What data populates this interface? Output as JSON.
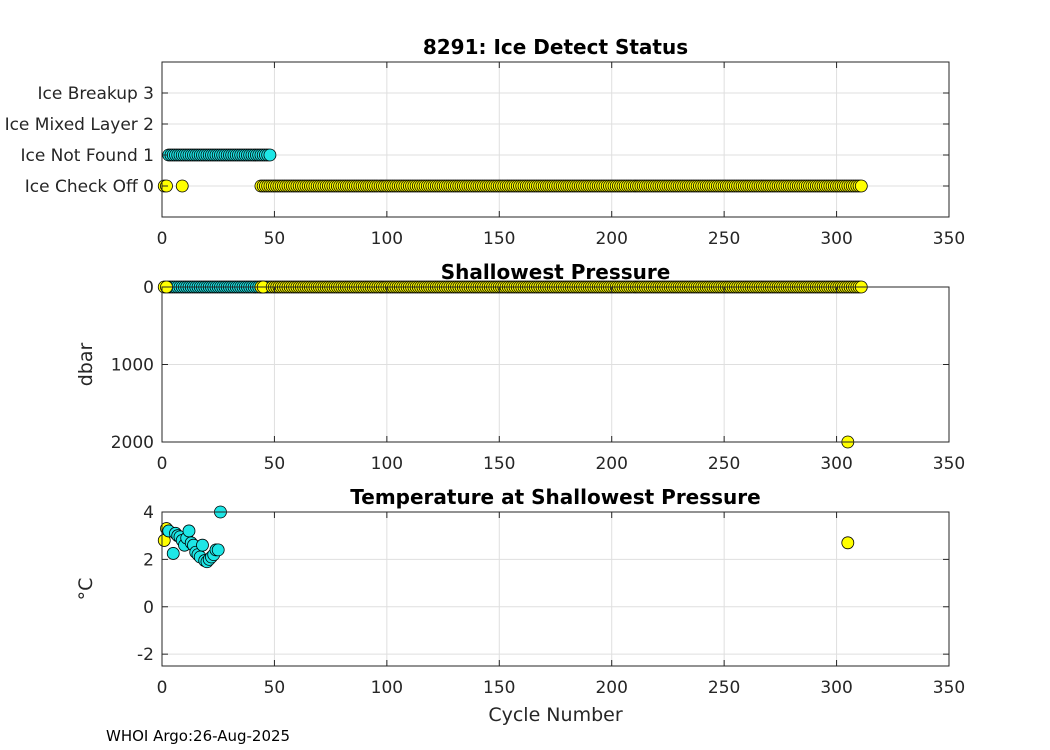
{
  "footer": "WHOI Argo:26-Aug-2025",
  "colors": {
    "yellow": "#ffff00",
    "cyan": "#1ee6e6"
  },
  "chart_data": [
    {
      "id": "ice",
      "type": "scatter",
      "title": "8291: Ice Detect Status",
      "xlabel": "",
      "ylabel": "",
      "xlim": [
        0,
        350
      ],
      "ylim": [
        -1,
        4
      ],
      "xticks": [
        0,
        50,
        100,
        150,
        200,
        250,
        300,
        350
      ],
      "xtick_labels": [
        "0",
        "50",
        "100",
        "150",
        "200",
        "250",
        "300",
        "350"
      ],
      "yticks": [
        0,
        1,
        2,
        3
      ],
      "ytick_labels": [
        "Ice Check Off 0",
        "Ice Not Found 1",
        "Ice Mixed Layer 2",
        "Ice Breakup 3"
      ],
      "grid": true,
      "series": [
        {
          "name": "cyan",
          "color": "#1ee6e6",
          "x": [
            3,
            4,
            5,
            6,
            7,
            8,
            9,
            10,
            11,
            12,
            13,
            14,
            15,
            16,
            17,
            18,
            19,
            20,
            21,
            22,
            23,
            24,
            25,
            26,
            27,
            28,
            29,
            30,
            31,
            32,
            33,
            34,
            35,
            36,
            37,
            38,
            39,
            40,
            41,
            42,
            43,
            44,
            45,
            46,
            47,
            48
          ],
          "y": [
            1,
            1,
            1,
            1,
            1,
            1,
            1,
            1,
            1,
            1,
            1,
            1,
            1,
            1,
            1,
            1,
            1,
            1,
            1,
            1,
            1,
            1,
            1,
            1,
            1,
            1,
            1,
            1,
            1,
            1,
            1,
            1,
            1,
            1,
            1,
            1,
            1,
            1,
            1,
            1,
            1,
            1,
            1,
            1,
            1,
            1
          ]
        },
        {
          "name": "yellow",
          "color": "#ffff00",
          "x": [
            1,
            2,
            9,
            44,
            45,
            46,
            47,
            48,
            49,
            50,
            51,
            52,
            53,
            54,
            55,
            56,
            57,
            58,
            59,
            60,
            61,
            62,
            63,
            64,
            65,
            66,
            67,
            68,
            69,
            70,
            71,
            72,
            73,
            74,
            75,
            76,
            77,
            78,
            79,
            80,
            81,
            82,
            83,
            84,
            85,
            86,
            87,
            88,
            89,
            90,
            91,
            92,
            93,
            94,
            95,
            96,
            97,
            98,
            99,
            100,
            101,
            102,
            103,
            104,
            105,
            106,
            107,
            108,
            109,
            110,
            111,
            112,
            113,
            114,
            115,
            116,
            117,
            118,
            119,
            120,
            121,
            122,
            123,
            124,
            125,
            126,
            127,
            128,
            129,
            130,
            131,
            132,
            133,
            134,
            135,
            136,
            137,
            138,
            139,
            140,
            141,
            142,
            143,
            144,
            145,
            146,
            147,
            148,
            149,
            150,
            151,
            152,
            153,
            154,
            155,
            156,
            157,
            158,
            159,
            160,
            161,
            162,
            163,
            164,
            165,
            166,
            167,
            168,
            169,
            170,
            171,
            172,
            173,
            174,
            175,
            176,
            177,
            178,
            179,
            180,
            181,
            182,
            183,
            184,
            185,
            186,
            187,
            188,
            189,
            190,
            191,
            192,
            193,
            194,
            195,
            196,
            197,
            198,
            199,
            200,
            201,
            202,
            203,
            204,
            205,
            206,
            207,
            208,
            209,
            210,
            211,
            212,
            213,
            214,
            215,
            216,
            217,
            218,
            219,
            220,
            221,
            222,
            223,
            224,
            225,
            226,
            227,
            228,
            229,
            230,
            231,
            232,
            233,
            234,
            235,
            236,
            237,
            238,
            239,
            240,
            241,
            242,
            243,
            244,
            245,
            246,
            247,
            248,
            249,
            250,
            251,
            252,
            253,
            254,
            255,
            256,
            257,
            258,
            259,
            260,
            261,
            262,
            263,
            264,
            265,
            266,
            267,
            268,
            269,
            270,
            271,
            272,
            273,
            274,
            275,
            276,
            277,
            278,
            279,
            280,
            281,
            282,
            283,
            284,
            285,
            286,
            287,
            288,
            289,
            290,
            291,
            292,
            293,
            294,
            295,
            296,
            297,
            298,
            299,
            300,
            301,
            302,
            303,
            304,
            305,
            306,
            307,
            308,
            309,
            310,
            311
          ],
          "y_constant": 0
        }
      ]
    },
    {
      "id": "pressure",
      "type": "scatter",
      "title": "Shallowest Pressure",
      "xlabel": "",
      "ylabel": "dbar",
      "xlim": [
        0,
        350
      ],
      "ylim": [
        0,
        2000
      ],
      "y_reversed": true,
      "xticks": [
        0,
        50,
        100,
        150,
        200,
        250,
        300,
        350
      ],
      "xtick_labels": [
        "0",
        "50",
        "100",
        "150",
        "200",
        "250",
        "300",
        "350"
      ],
      "yticks": [
        0,
        1000,
        2000
      ],
      "ytick_labels": [
        "0",
        "1000",
        "2000"
      ],
      "grid": true,
      "series": [
        {
          "name": "cyan",
          "color": "#1ee6e6",
          "x": [
            3,
            4,
            5,
            6,
            7,
            8,
            9,
            10,
            11,
            12,
            13,
            14,
            15,
            16,
            17,
            18,
            19,
            20,
            21,
            22,
            23,
            24,
            25,
            26,
            27,
            28,
            29,
            30,
            31,
            32,
            33,
            34,
            35,
            36,
            37,
            38,
            39,
            40,
            41,
            42,
            43,
            44,
            45,
            46,
            47,
            48
          ],
          "y_constant": 0
        },
        {
          "name": "yellow",
          "color": "#ffff00",
          "x_range": [
            49,
            311
          ],
          "x_extra": [
            1,
            2,
            44,
            45
          ],
          "y_constant": 0
        },
        {
          "name": "yellow-deep",
          "color": "#ffff00",
          "x": [
            305
          ],
          "y": [
            2000
          ]
        }
      ]
    },
    {
      "id": "temperature",
      "type": "scatter",
      "title": "Temperature at Shallowest Pressure",
      "xlabel": "Cycle Number",
      "ylabel": "°C",
      "xlim": [
        0,
        350
      ],
      "ylim": [
        -2.5,
        4
      ],
      "xticks": [
        0,
        50,
        100,
        150,
        200,
        250,
        300,
        350
      ],
      "xtick_labels": [
        "0",
        "50",
        "100",
        "150",
        "200",
        "250",
        "300",
        "350"
      ],
      "yticks": [
        -2,
        0,
        2,
        4
      ],
      "ytick_labels": [
        "-2",
        "0",
        "2",
        "4"
      ],
      "grid": true,
      "series": [
        {
          "name": "yellow",
          "color": "#ffff00",
          "x": [
            1,
            2,
            305
          ],
          "y": [
            2.8,
            3.3,
            2.7
          ]
        },
        {
          "name": "cyan",
          "color": "#1ee6e6",
          "x": [
            3,
            5,
            6,
            7,
            8,
            9,
            10,
            11,
            12,
            13,
            14,
            15,
            16,
            17,
            18,
            19,
            20,
            21,
            22,
            23,
            24,
            25,
            26
          ],
          "y": [
            3.2,
            2.25,
            3.1,
            3.0,
            2.95,
            2.8,
            2.6,
            2.9,
            3.2,
            2.7,
            2.6,
            2.3,
            2.2,
            2.1,
            2.6,
            1.95,
            1.9,
            2.0,
            2.1,
            2.2,
            2.4,
            2.4,
            4.0
          ]
        }
      ]
    }
  ]
}
